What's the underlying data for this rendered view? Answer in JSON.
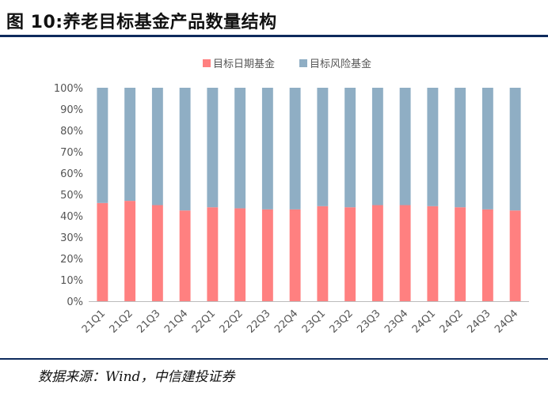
{
  "header": {
    "title": "图 10:养老目标基金产品数量结构"
  },
  "footer": {
    "source": "数据来源：Wind，中信建投证券"
  },
  "colors": {
    "target_date": "#ff8080",
    "target_risk": "#8faec4",
    "axis_text": "#555555",
    "rule": "#0d2a5c"
  },
  "chart_data": {
    "type": "bar",
    "stacked": true,
    "title": "",
    "xlabel": "",
    "ylabel": "",
    "ylim": [
      0,
      100
    ],
    "y_ticks": [
      "0%",
      "10%",
      "20%",
      "30%",
      "40%",
      "50%",
      "60%",
      "70%",
      "80%",
      "90%",
      "100%"
    ],
    "legend_position": "top-center",
    "grid": false,
    "categories": [
      "21Q1",
      "21Q2",
      "21Q3",
      "21Q4",
      "22Q1",
      "22Q2",
      "22Q3",
      "22Q4",
      "23Q1",
      "23Q2",
      "23Q3",
      "23Q4",
      "24Q1",
      "24Q2",
      "24Q3",
      "24Q4"
    ],
    "series": [
      {
        "name": "目标日期基金",
        "color": "#ff8080",
        "values": [
          46,
          47,
          45,
          42.5,
          44,
          43.5,
          43,
          43,
          44.5,
          44,
          45,
          45,
          44.5,
          44,
          43,
          42.5
        ]
      },
      {
        "name": "目标风险基金",
        "color": "#8faec4",
        "values": [
          54,
          53,
          55,
          57.5,
          56,
          56.5,
          57,
          57,
          55.5,
          56,
          55,
          55,
          55.5,
          56,
          57,
          57.5
        ]
      }
    ]
  }
}
